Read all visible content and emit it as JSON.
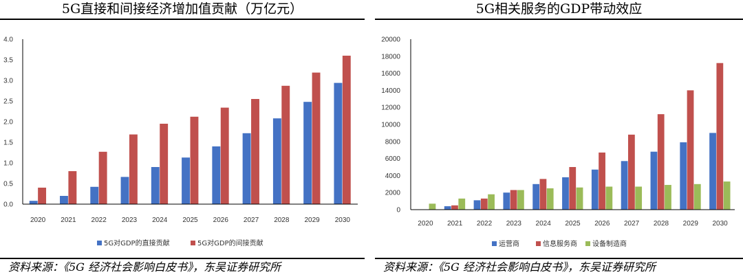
{
  "colors": {
    "blue": "#4472C4",
    "red": "#C0504D",
    "green": "#9BBB59",
    "axis": "#000000"
  },
  "left": {
    "title": "5G直接和间接经济增加值贡献（万亿元）",
    "source": "资料来源：《5G 经济社会影响白皮书》，东吴证券研究所"
  },
  "right": {
    "title": "5G相关服务的GDP带动效应",
    "source": "资料来源：《5G 经济社会影响白皮书》，东吴证券研究所"
  },
  "chart_data": [
    {
      "type": "bar",
      "title": "5G直接和间接经济增加值贡献（万亿元）",
      "categories": [
        "2020",
        "2021",
        "2022",
        "2023",
        "2024",
        "2025",
        "2026",
        "2027",
        "2028",
        "2029",
        "2030"
      ],
      "series": [
        {
          "name": "5G对GDP的直接贡献",
          "color": "#4472C4",
          "values": [
            0.08,
            0.2,
            0.42,
            0.66,
            0.9,
            1.13,
            1.4,
            1.72,
            2.08,
            2.48,
            2.94
          ]
        },
        {
          "name": "5G对GDP的间接贡献",
          "color": "#C0504D",
          "values": [
            0.4,
            0.8,
            1.27,
            1.69,
            1.95,
            2.12,
            2.34,
            2.55,
            2.87,
            3.19,
            3.6
          ]
        }
      ],
      "ylim": [
        0,
        4.0
      ],
      "yticks": [
        "0.0",
        "0.5",
        "1.0",
        "1.5",
        "2.0",
        "2.5",
        "3.0",
        "3.5",
        "4.0"
      ],
      "xlabel": "",
      "ylabel": "",
      "legend": "bottom"
    },
    {
      "type": "bar",
      "title": "5G相关服务的GDP带动效应",
      "categories": [
        "2020",
        "2021",
        "2022",
        "2023",
        "2024",
        "2025",
        "2026",
        "2027",
        "2028",
        "2029",
        "2030"
      ],
      "series": [
        {
          "name": "运营商",
          "color": "#4472C4",
          "values": [
            0,
            400,
            1100,
            2000,
            3000,
            3800,
            4700,
            5700,
            6800,
            7900,
            9000
          ]
        },
        {
          "name": "信息服务商",
          "color": "#C0504D",
          "values": [
            0,
            500,
            1300,
            2300,
            3600,
            5000,
            6700,
            8800,
            11200,
            14000,
            17200
          ]
        },
        {
          "name": "设备制造商",
          "color": "#9BBB59",
          "values": [
            700,
            1300,
            1800,
            2300,
            2500,
            2600,
            2700,
            2700,
            2900,
            3000,
            3300
          ]
        }
      ],
      "ylim": [
        0,
        20000
      ],
      "yticks": [
        "0",
        "2000",
        "4000",
        "6000",
        "8000",
        "10000",
        "12000",
        "14000",
        "16000",
        "18000",
        "20000"
      ],
      "xlabel": "",
      "ylabel": "",
      "legend": "bottom"
    }
  ]
}
